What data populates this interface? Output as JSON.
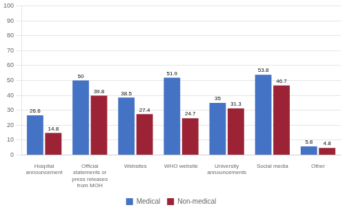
{
  "chart_data": {
    "type": "bar",
    "categories": [
      "Hospital\nannouncement",
      "Official\nstatements or\npress releases\nfrom MOH",
      "Websites",
      "WHO website",
      "University\nannouncements",
      "Social media",
      "Other"
    ],
    "series": [
      {
        "name": "Medical",
        "color": "#4472C4",
        "values": [
          26.6,
          50.0,
          38.5,
          51.9,
          35.0,
          53.8,
          5.8
        ]
      },
      {
        "name": "Non-medical",
        "color": "#9B2335",
        "values": [
          14.8,
          39.8,
          27.4,
          24.7,
          31.3,
          46.7,
          4.8
        ]
      }
    ],
    "ylim": [
      0,
      100
    ],
    "yticks": [
      0,
      10,
      20,
      30,
      40,
      50,
      60,
      70,
      80,
      90,
      100
    ],
    "grid": true,
    "legend": "bottom",
    "data_labels": true
  }
}
